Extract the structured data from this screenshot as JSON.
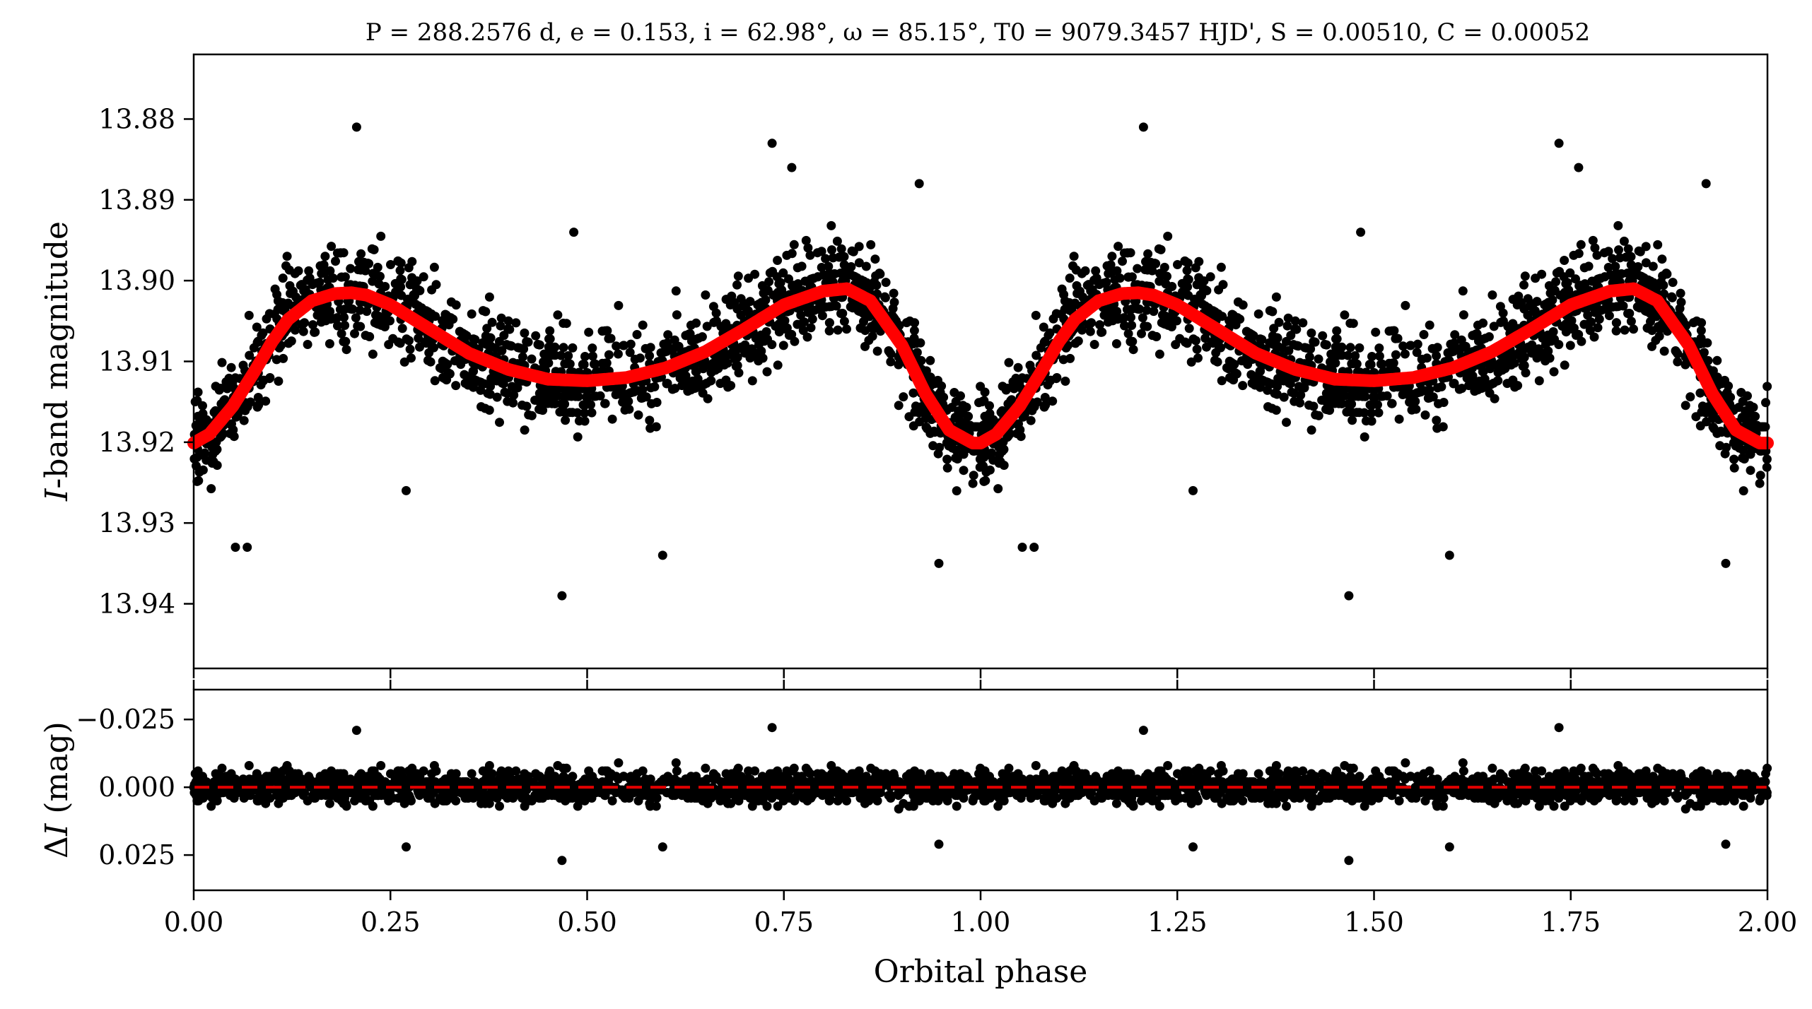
{
  "chart_data": [
    {
      "type": "scatter",
      "panel": "light curve",
      "title": "P = 288.2576 d, e = 0.153, i = 62.98°, ω = 85.15°, T0 = 9079.3457 HJD', S = 0.00510, C = 0.00052",
      "ylabel": "I-band magnitude",
      "xlabel": "",
      "xlim": [
        0.0,
        2.0
      ],
      "ylim": [
        13.948,
        13.872
      ],
      "y_inverted": true,
      "yticks": [
        13.88,
        13.89,
        13.9,
        13.91,
        13.92,
        13.93,
        13.94
      ],
      "ytick_labels": [
        "13.88",
        "13.89",
        "13.90",
        "13.91",
        "13.92",
        "13.93",
        "13.94"
      ],
      "xticks": [
        0,
        0.25,
        0.5,
        0.75,
        1.0,
        1.25,
        1.5,
        1.75,
        2.0
      ],
      "series": [
        {
          "kind": "observations",
          "color": "#000000",
          "note_points": "dense scatter about model; phase-repeated over 0-2",
          "envelope": {
            "x": [
              0.0,
              0.05,
              0.1,
              0.15,
              0.2,
              0.25,
              0.3,
              0.4,
              0.5,
              0.6,
              0.7,
              0.8,
              0.85,
              0.9,
              0.95,
              1.0
            ],
            "y": [
              13.92,
              13.915,
              13.906,
              13.902,
              13.9015,
              13.903,
              13.906,
              13.91,
              13.912,
              13.911,
              13.906,
              13.901,
              13.901,
              13.907,
              13.916,
              13.92
            ]
          },
          "outliers": [
            {
              "x": 0.207,
              "y": 13.881
            },
            {
              "x": 0.735,
              "y": 13.883
            },
            {
              "x": 0.468,
              "y": 13.939
            },
            {
              "x": 0.596,
              "y": 13.934
            },
            {
              "x": 0.947,
              "y": 13.935
            },
            {
              "x": 0.053,
              "y": 13.933
            },
            {
              "x": 0.068,
              "y": 13.933
            },
            {
              "x": 0.76,
              "y": 13.886
            },
            {
              "x": 0.922,
              "y": 13.888
            },
            {
              "x": 0.483,
              "y": 13.894
            },
            {
              "x": 0.27,
              "y": 13.926
            }
          ]
        },
        {
          "kind": "model",
          "color": "#ff0000",
          "x": [
            0.0,
            0.02,
            0.05,
            0.08,
            0.1,
            0.12,
            0.15,
            0.18,
            0.2,
            0.22,
            0.25,
            0.3,
            0.35,
            0.4,
            0.45,
            0.5,
            0.55,
            0.6,
            0.65,
            0.7,
            0.75,
            0.8,
            0.83,
            0.86,
            0.9,
            0.93,
            0.96,
            0.99,
            1.0
          ],
          "y": [
            13.9201,
            13.919,
            13.9155,
            13.9108,
            13.9075,
            13.9048,
            13.9025,
            13.9016,
            13.9015,
            13.9018,
            13.903,
            13.906,
            13.909,
            13.911,
            13.9122,
            13.9124,
            13.912,
            13.9108,
            13.9088,
            13.906,
            13.903,
            13.9013,
            13.901,
            13.9025,
            13.908,
            13.914,
            13.9185,
            13.9201,
            13.9201
          ]
        }
      ]
    },
    {
      "type": "scatter",
      "panel": "residuals",
      "xlabel": "Orbital phase",
      "ylabel": "ΔI (mag)",
      "xlim": [
        0.0,
        2.0
      ],
      "ylim": [
        0.038,
        -0.036
      ],
      "y_inverted": true,
      "yticks": [
        -0.025,
        0.0,
        0.025
      ],
      "ytick_labels": [
        "−0.025",
        "0.000",
        "0.025"
      ],
      "xticks": [
        0,
        0.25,
        0.5,
        0.75,
        1.0,
        1.25,
        1.5,
        1.75,
        2.0
      ],
      "xtick_labels": [
        "0.00",
        "0.25",
        "0.50",
        "0.75",
        "1.00",
        "1.25",
        "1.50",
        "1.75",
        "2.00"
      ],
      "series": [
        {
          "kind": "residuals",
          "color": "#000000",
          "spread": 0.012
        },
        {
          "kind": "zero-line",
          "color": "#e00000",
          "style": "dashed",
          "y": 0.0
        }
      ],
      "outliers": [
        {
          "x": 0.468,
          "y": 0.027
        },
        {
          "x": 0.596,
          "y": 0.022
        },
        {
          "x": 0.27,
          "y": 0.022
        },
        {
          "x": 0.207,
          "y": -0.021
        },
        {
          "x": 0.735,
          "y": -0.022
        },
        {
          "x": 0.947,
          "y": 0.021
        }
      ]
    }
  ]
}
